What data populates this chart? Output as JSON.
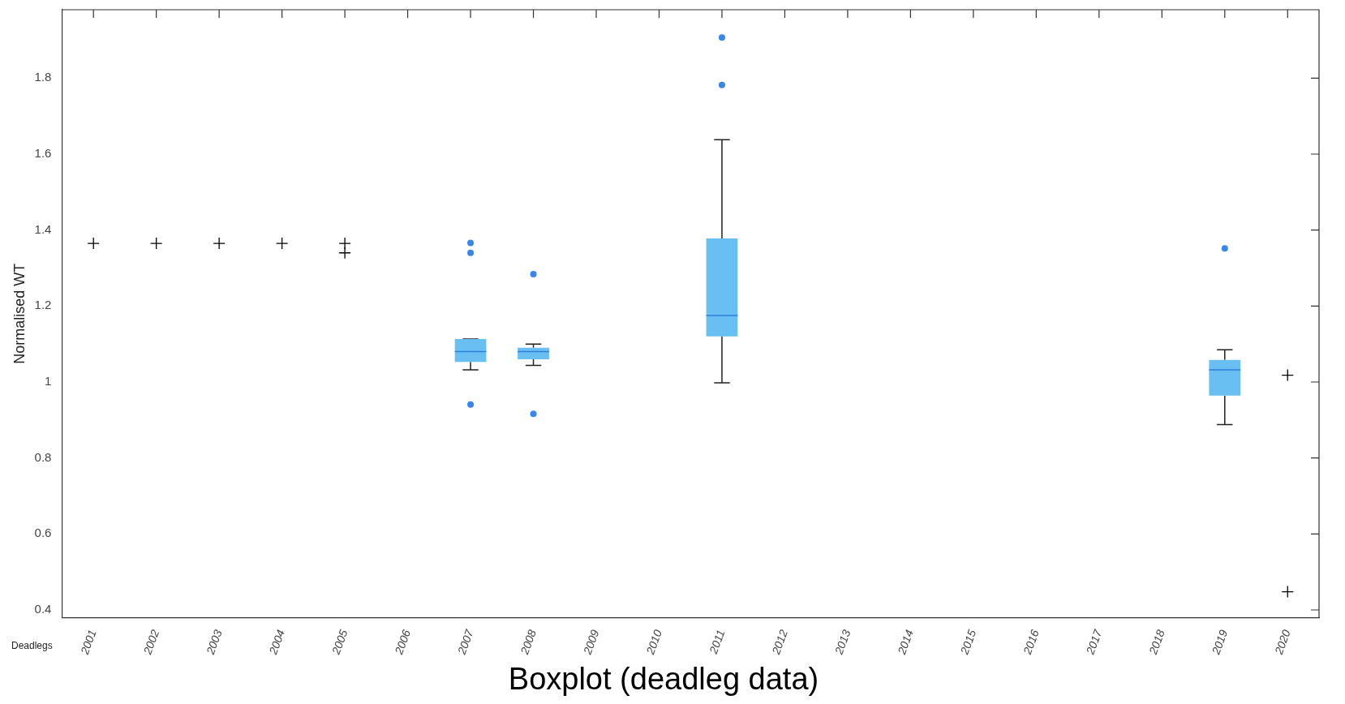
{
  "chart_data": {
    "type": "box",
    "title": "Boxplot (deadleg data)",
    "ylabel": "Normalised WT",
    "categories": [
      "2001",
      "2002",
      "2003",
      "2004",
      "2005",
      "2006",
      "2007",
      "2008",
      "2009",
      "2010",
      "2011",
      "2012",
      "2013",
      "2014",
      "2015",
      "2016",
      "2017",
      "2018",
      "2019",
      "2020"
    ],
    "ylim": [
      0.38,
      1.98
    ],
    "yticks": [
      0.4,
      0.6,
      0.8,
      1,
      1.2,
      1.4,
      1.6,
      1.8
    ],
    "grid": false,
    "series": [
      {
        "type": "box",
        "color": "#6abff2",
        "boxes": [
          null,
          null,
          null,
          null,
          null,
          null,
          {
            "low": 1.032,
            "q1": 1.053,
            "median": 1.08,
            "q3": 1.113,
            "high": 1.113,
            "outliers": [
              1.366,
              1.34,
              0.941
            ]
          },
          {
            "low": 1.044,
            "q1": 1.06,
            "median": 1.08,
            "q3": 1.09,
            "high": 1.1,
            "outliers": [
              1.284,
              0.916
            ]
          },
          null,
          null,
          {
            "low": 0.998,
            "q1": 1.12,
            "median": 1.175,
            "q3": 1.378,
            "high": 1.638,
            "outliers": [
              1.907,
              1.782
            ]
          },
          null,
          null,
          null,
          null,
          null,
          null,
          null,
          {
            "low": 0.888,
            "q1": 0.964,
            "median": 1.032,
            "q3": 1.058,
            "high": 1.085,
            "outliers": [
              1.352
            ]
          },
          null
        ]
      },
      {
        "type": "scatter",
        "color": "#000000",
        "marker": "cross",
        "values": [
          1.365,
          1.365,
          1.365,
          1.365,
          1.365,
          null,
          null,
          null,
          null,
          null,
          null,
          null,
          null,
          null,
          null,
          null,
          null,
          null,
          null,
          1.018
        ]
      },
      {
        "type": "scatter",
        "color": "#000000",
        "marker": "cross",
        "values": [
          null,
          null,
          null,
          null,
          1.34,
          null,
          null,
          null,
          null,
          null,
          null,
          null,
          null,
          null,
          null,
          null,
          null,
          null,
          null,
          0.448
        ]
      }
    ],
    "annotations": [
      "Deadlegs"
    ]
  }
}
